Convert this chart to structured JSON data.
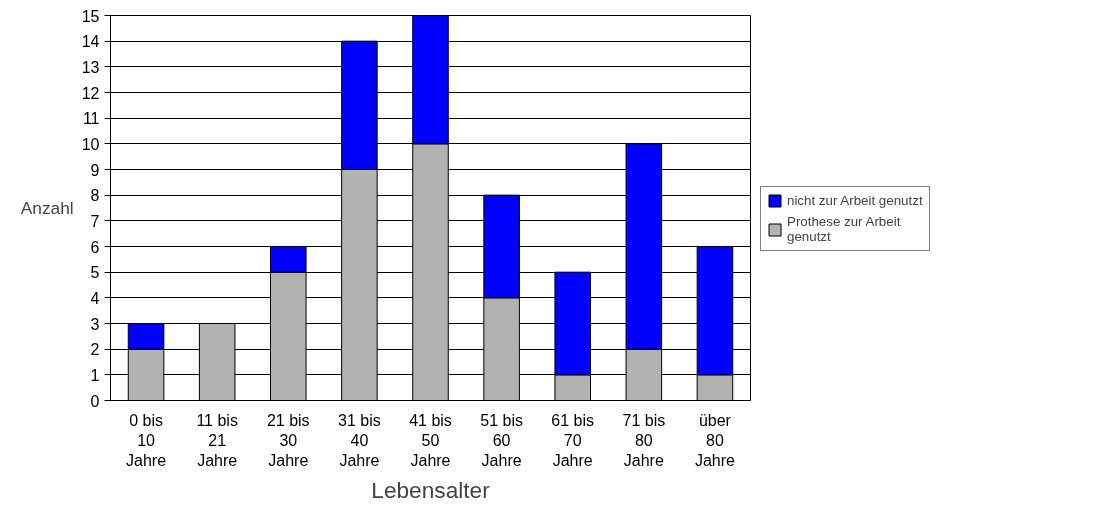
{
  "chart_data": {
    "type": "bar",
    "stacked": true,
    "xlabel": "Lebensalter",
    "ylabel": "Anzahl",
    "categories": [
      "0 bis\n10\nJahre",
      "11 bis\n21\nJahre",
      "21 bis\n30\nJahre",
      "31 bis\n40\nJahre",
      "41 bis\n50\nJahre",
      "51 bis\n60\nJahre",
      "61 bis\n70\nJahre",
      "71 bis\n80\nJahre",
      "über\n80\nJahre"
    ],
    "series": [
      {
        "name": "Prothese zur Arbeit\ngenutzt",
        "color": "#b2b2b2",
        "values": [
          2,
          3,
          5,
          9,
          10,
          4,
          1,
          2,
          1
        ]
      },
      {
        "name": "nicht zur Arbeit genutzt",
        "color": "#0000ff",
        "values": [
          1,
          0,
          1,
          5,
          5,
          4,
          4,
          8,
          5
        ]
      }
    ],
    "ylim": [
      0,
      15
    ],
    "yticks": [
      0,
      1,
      2,
      3,
      4,
      5,
      6,
      7,
      8,
      9,
      10,
      11,
      12,
      13,
      14,
      15
    ],
    "grid": "y",
    "legend": "right"
  }
}
